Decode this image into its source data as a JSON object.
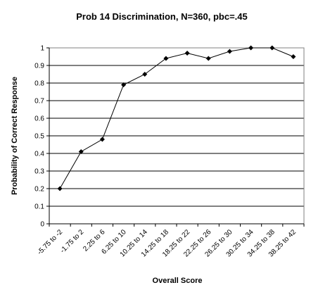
{
  "chart_data": {
    "type": "line",
    "title": "Prob 14 Discrimination, N=360, pbc=.45",
    "xlabel": "Overall Score",
    "ylabel": "Probability of Correct Response",
    "ylim": [
      0,
      1
    ],
    "yticks": [
      "0",
      "0.1",
      "0.2",
      "0.3",
      "0.4",
      "0.5",
      "0.6",
      "0.7",
      "0.8",
      "0.9",
      "1"
    ],
    "grid": true,
    "legend": "none",
    "categories": [
      "-5.75 to -2",
      "-1.75 to 2",
      "2.25 to 6",
      "6.25 to 10",
      "10.25 to 14",
      "14.25 to 18",
      "18.25 to 22",
      "22.25 to 26",
      "26.25 to 30",
      "30.25 to 34",
      "34.25 to 38",
      "38.25 to 42"
    ],
    "series": [
      {
        "values": [
          0.2,
          0.41,
          0.48,
          0.79,
          0.85,
          0.94,
          0.97,
          0.94,
          0.98,
          1.0,
          1.0,
          0.95
        ]
      }
    ],
    "colors": {
      "line": "#000000",
      "marker": "#000000",
      "grid": "#000000",
      "border": "#808080"
    }
  }
}
